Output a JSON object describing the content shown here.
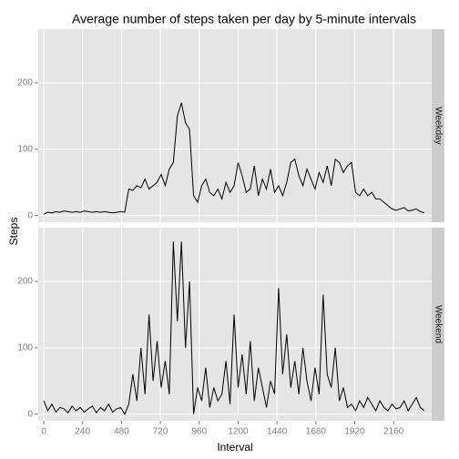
{
  "chart_data": {
    "type": "line",
    "title": "Average number of steps taken per day by 5-minute intervals",
    "xlabel": "Interval",
    "ylabel": "Steps",
    "xlim": [
      -34,
      2395
    ],
    "ylim": [
      -10,
      281
    ],
    "xticks": [
      0,
      240,
      480,
      720,
      960,
      1200,
      1440,
      1680,
      1920,
      2160
    ],
    "yticks": [
      0,
      100,
      200
    ],
    "grid": true,
    "x": [
      0,
      25,
      50,
      75,
      100,
      125,
      150,
      175,
      200,
      225,
      250,
      275,
      300,
      325,
      350,
      375,
      400,
      425,
      450,
      475,
      500,
      525,
      550,
      575,
      600,
      625,
      650,
      675,
      700,
      725,
      750,
      775,
      800,
      825,
      850,
      875,
      900,
      925,
      950,
      975,
      1000,
      1025,
      1050,
      1075,
      1100,
      1125,
      1150,
      1175,
      1200,
      1225,
      1250,
      1275,
      1300,
      1325,
      1350,
      1375,
      1400,
      1425,
      1450,
      1475,
      1500,
      1525,
      1550,
      1575,
      1600,
      1625,
      1650,
      1675,
      1700,
      1725,
      1750,
      1775,
      1800,
      1825,
      1850,
      1875,
      1900,
      1925,
      1950,
      1975,
      2000,
      2025,
      2050,
      2075,
      2100,
      2125,
      2150,
      2175,
      2200,
      2225,
      2250,
      2275,
      2300,
      2325,
      2350
    ],
    "series": [
      {
        "name": "Weekday",
        "color": "#000000",
        "values": [
          2,
          5,
          4,
          6,
          5,
          7,
          6,
          5,
          6,
          5,
          7,
          6,
          5,
          6,
          5,
          6,
          5,
          4,
          5,
          6,
          5,
          40,
          38,
          45,
          42,
          55,
          40,
          45,
          50,
          62,
          45,
          70,
          80,
          150,
          170,
          140,
          130,
          30,
          20,
          45,
          55,
          35,
          30,
          40,
          25,
          50,
          35,
          45,
          80,
          60,
          35,
          40,
          75,
          30,
          55,
          40,
          70,
          35,
          45,
          30,
          50,
          80,
          85,
          60,
          45,
          70,
          55,
          40,
          65,
          50,
          75,
          45,
          85,
          80,
          65,
          75,
          80,
          35,
          30,
          40,
          30,
          35,
          25,
          25,
          20,
          15,
          10,
          8,
          10,
          12,
          7,
          8,
          10,
          6,
          4
        ]
      },
      {
        "name": "Weekend",
        "color": "#000000",
        "values": [
          20,
          5,
          15,
          3,
          10,
          8,
          2,
          12,
          5,
          10,
          3,
          8,
          12,
          2,
          10,
          5,
          15,
          3,
          8,
          10,
          0,
          15,
          60,
          20,
          100,
          30,
          150,
          50,
          110,
          40,
          80,
          30,
          260,
          140,
          260,
          100,
          200,
          0,
          40,
          20,
          70,
          10,
          40,
          20,
          30,
          80,
          15,
          150,
          40,
          90,
          30,
          110,
          20,
          70,
          40,
          10,
          50,
          30,
          190,
          60,
          120,
          40,
          80,
          30,
          100,
          50,
          20,
          70,
          30,
          180,
          60,
          40,
          100,
          20,
          40,
          10,
          15,
          5,
          20,
          10,
          25,
          15,
          5,
          20,
          10,
          5,
          15,
          8,
          10,
          20,
          5,
          15,
          25,
          10,
          5
        ]
      }
    ]
  }
}
